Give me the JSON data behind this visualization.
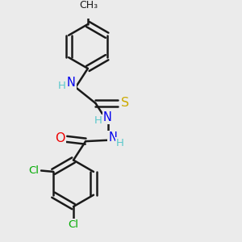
{
  "bg_color": "#ebebeb",
  "bond_color": "#1a1a1a",
  "bond_width": 1.8,
  "atom_colors": {
    "C": "#1a1a1a",
    "H": "#5bc8cc",
    "N": "#0000ee",
    "O": "#ee0000",
    "S": "#ccaa00",
    "Cl": "#00aa00"
  },
  "font_size": 9.5
}
